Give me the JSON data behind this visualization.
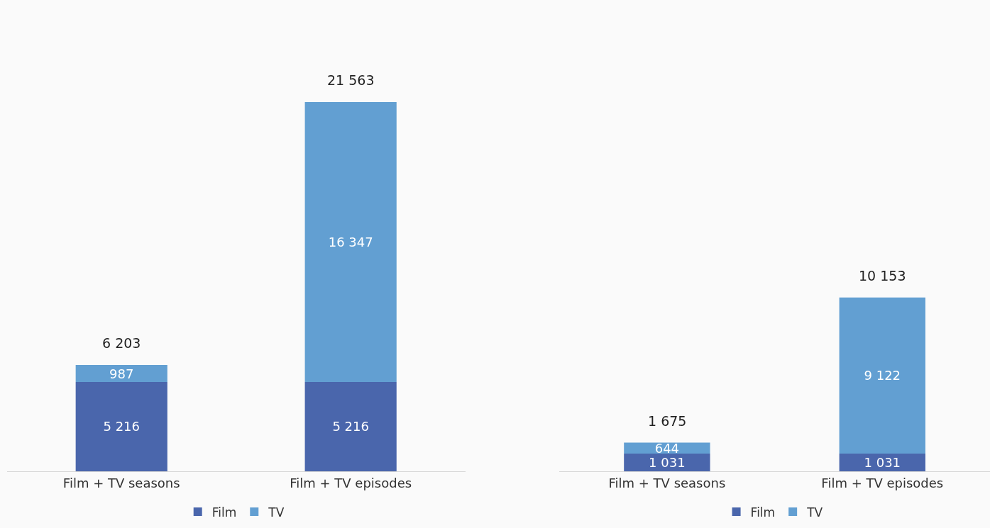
{
  "chart_data": [
    {
      "type": "bar",
      "stacked": true,
      "categories": [
        "Film + TV seasons",
        "Film + TV episodes"
      ],
      "series": [
        {
          "name": "Film",
          "color": "#4a66ac",
          "values": [
            5216,
            5216
          ],
          "value_labels": [
            "5 216",
            "5 216"
          ]
        },
        {
          "name": "TV",
          "color": "#629fd2",
          "values": [
            987,
            16347
          ],
          "value_labels": [
            "987",
            "16 347"
          ]
        }
      ],
      "totals": [
        "6 203",
        "21 563"
      ],
      "tick_labels": "x",
      "legend": "bottom"
    },
    {
      "type": "bar",
      "stacked": true,
      "categories": [
        "Film + TV seasons",
        "Film + TV episodes"
      ],
      "series": [
        {
          "name": "Film",
          "color": "#4a66ac",
          "values": [
            1031,
            1031
          ],
          "value_labels": [
            "1 031",
            "1 031"
          ]
        },
        {
          "name": "TV",
          "color": "#629fd2",
          "values": [
            644,
            9122
          ],
          "value_labels": [
            "644",
            "9 122"
          ]
        }
      ],
      "totals": [
        "1 675",
        "10 153"
      ],
      "tick_labels": "x",
      "legend": "bottom"
    }
  ]
}
